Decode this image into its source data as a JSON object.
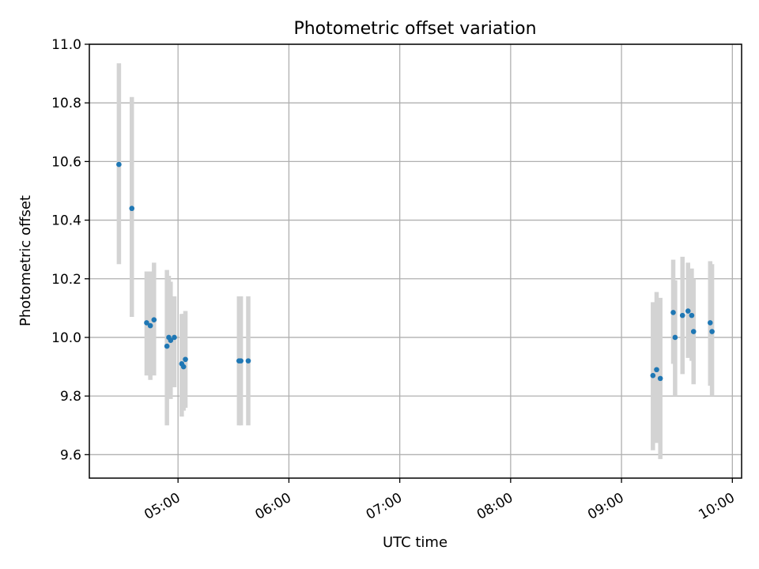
{
  "chart_data": {
    "type": "scatter",
    "title": "Photometric offset variation",
    "xlabel": "UTC time",
    "ylabel": "Photometric offset",
    "x_axis": "time",
    "xlim": [
      "04:12",
      "10:05"
    ],
    "ylim": [
      9.52,
      11.0
    ],
    "x_ticks": [
      "05:00",
      "06:00",
      "07:00",
      "08:00",
      "09:00",
      "10:00"
    ],
    "y_ticks": [
      "9.6",
      "9.8",
      "10.0",
      "10.2",
      "10.4",
      "10.6",
      "10.8",
      "11.0"
    ],
    "grid": true,
    "colors": {
      "marker": "#1f77b4",
      "error_bar": "#d3d3d3"
    },
    "series": [
      {
        "x": [
          "04:28",
          "04:35",
          "04:43",
          "04:45",
          "04:47",
          "04:54",
          "04:55",
          "04:56",
          "04:58",
          "05:02",
          "05:03",
          "05:04",
          "05:33",
          "05:34",
          "05:38",
          "09:17",
          "09:19",
          "09:21",
          "09:28",
          "09:29",
          "09:33",
          "09:36",
          "09:38",
          "09:39",
          "09:48",
          "09:49"
        ],
        "y": [
          10.59,
          10.44,
          10.05,
          10.04,
          10.06,
          9.97,
          10.0,
          9.99,
          10.0,
          9.91,
          9.9,
          9.925,
          9.92,
          9.92,
          9.92,
          9.87,
          9.89,
          9.86,
          10.085,
          10.0,
          10.075,
          10.09,
          10.075,
          10.02,
          10.05,
          10.02
        ],
        "yerr_low": [
          10.25,
          10.07,
          9.87,
          9.855,
          9.87,
          9.7,
          9.88,
          9.79,
          9.83,
          9.73,
          9.75,
          9.76,
          9.7,
          9.7,
          9.7,
          9.615,
          9.64,
          9.585,
          9.91,
          9.8,
          9.875,
          9.93,
          9.92,
          9.84,
          9.835,
          9.8
        ],
        "yerr_high": [
          10.935,
          10.82,
          10.225,
          10.225,
          10.255,
          10.23,
          10.21,
          10.19,
          10.14,
          10.08,
          10.08,
          10.09,
          10.14,
          10.14,
          10.14,
          10.12,
          10.155,
          10.135,
          10.265,
          10.195,
          10.275,
          10.255,
          10.235,
          10.2,
          10.26,
          10.25
        ]
      }
    ]
  }
}
